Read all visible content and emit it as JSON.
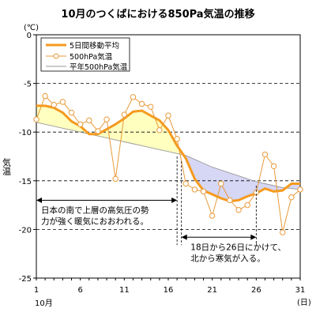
{
  "chart_data": {
    "type": "line",
    "title": "10月のつくばにおける850Pa気温の推移",
    "ylabel": "気温",
    "yunit": "(℃)",
    "xunit": "(日)",
    "month_label": "10月",
    "xlim": [
      1,
      31
    ],
    "ylim": [
      -25,
      0
    ],
    "yticks": [
      0,
      -5,
      -10,
      -15,
      -20,
      -25
    ],
    "xticks": [
      1,
      6,
      11,
      16,
      21,
      26,
      31
    ],
    "grid_y_dashed": true,
    "legend_position": "top-left",
    "x": [
      1,
      2,
      3,
      4,
      5,
      6,
      7,
      8,
      9,
      10,
      11,
      12,
      13,
      14,
      15,
      16,
      17,
      18,
      19,
      20,
      21,
      22,
      23,
      24,
      25,
      26,
      27,
      28,
      29,
      30,
      31
    ],
    "series": [
      {
        "name": "5日間移動平均",
        "color": "#f59a1e",
        "values": [
          -7.3,
          -7.3,
          -7.5,
          -8.0,
          -8.9,
          -9.4,
          -10.2,
          -10.2,
          -9.7,
          -9.2,
          -8.6,
          -7.9,
          -7.8,
          -8.3,
          -8.8,
          -9.8,
          -11.4,
          -12.7,
          -14.8,
          -16.0,
          -16.4,
          -16.8,
          -17.1,
          -17.0,
          -16.6,
          -16.3,
          -15.8,
          -16.1,
          -16.0,
          -15.3,
          -15.3
        ]
      },
      {
        "name": "500hPa気温",
        "color": "#e89a3a",
        "values": [
          -8.7,
          -6.3,
          -7.2,
          -6.9,
          -8.0,
          -9.2,
          -8.8,
          -9.9,
          -8.7,
          -14.8,
          -8.2,
          -6.4,
          -7.1,
          -7.4,
          -9.8,
          -8.3,
          -10.7,
          -15.3,
          -15.9,
          -16.1,
          -18.6,
          -15.3,
          -17.0,
          -18.0,
          -17.5,
          -16.2,
          -12.3,
          -13.5,
          -20.3,
          -16.7,
          -15.9
        ]
      },
      {
        "name": "平年500hPa気温",
        "color": "#9a9a9a",
        "values": [
          -9.0,
          -9.2,
          -9.4,
          -9.6,
          -9.8,
          -10.0,
          -10.2,
          -10.4,
          -10.6,
          -10.8,
          -11.0,
          -11.2,
          -11.4,
          -11.6,
          -11.8,
          -12.0,
          -12.2,
          -12.4,
          -12.8,
          -13.2,
          -13.6,
          -13.9,
          -14.2,
          -14.5,
          -14.8,
          -15.1,
          -15.3,
          -15.5,
          -15.7,
          -15.8,
          -15.9
        ]
      }
    ],
    "fills": [
      {
        "color": "#ffffc0",
        "range": [
          1,
          18
        ]
      },
      {
        "color": "#d6d6f5",
        "range": [
          18,
          31
        ]
      }
    ],
    "annotations": [
      {
        "lines": [
          "日本の南で上層の高気圧の勢",
          "力が強く暖気におおわれる。"
        ],
        "arrow_x": [
          1,
          17
        ],
        "arrow_y": -17
      },
      {
        "lines": [
          "18日から26日にかけて、",
          "北から寒気が入る。"
        ],
        "arrow_x": [
          17.5,
          26
        ],
        "arrow_y": -20.8
      }
    ]
  }
}
